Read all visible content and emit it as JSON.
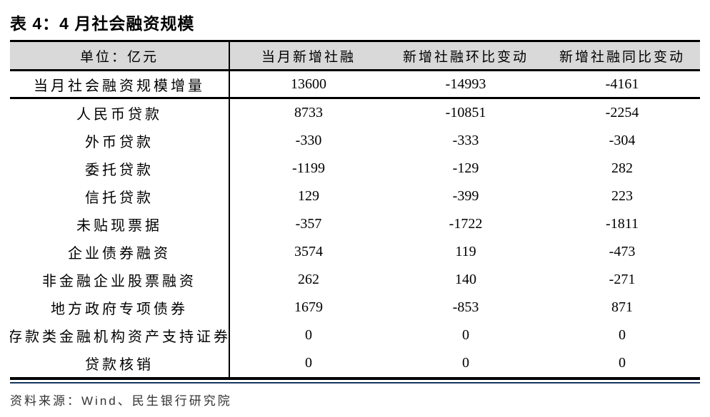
{
  "title": "表 4：4 月社会融资规模",
  "table": {
    "header": [
      "单位：亿元",
      "当月新增社融",
      "新增社融环比变动",
      "新增社融同比变动"
    ],
    "rows": [
      {
        "label": "当月社会融资规模增量",
        "values": [
          "13600",
          "-14993",
          "-4161"
        ],
        "emphasis": true
      },
      {
        "label": "人民币贷款",
        "values": [
          "8733",
          "-10851",
          "-2254"
        ],
        "emphasis": false
      },
      {
        "label": "外币贷款",
        "values": [
          "-330",
          "-333",
          "-304"
        ],
        "emphasis": false
      },
      {
        "label": "委托贷款",
        "values": [
          "-1199",
          "-129",
          "282"
        ],
        "emphasis": false
      },
      {
        "label": "信托贷款",
        "values": [
          "129",
          "-399",
          "223"
        ],
        "emphasis": false
      },
      {
        "label": "未贴现票据",
        "values": [
          "-357",
          "-1722",
          "-1811"
        ],
        "emphasis": false
      },
      {
        "label": "企业债券融资",
        "values": [
          "3574",
          "119",
          "-473"
        ],
        "emphasis": false
      },
      {
        "label": "非金融企业股票融资",
        "values": [
          "262",
          "140",
          "-271"
        ],
        "emphasis": false
      },
      {
        "label": "地方政府专项债券",
        "values": [
          "1679",
          "-853",
          "871"
        ],
        "emphasis": false
      },
      {
        "label": "存款类金融机构资产支持证券",
        "values": [
          "0",
          "0",
          "0"
        ],
        "emphasis": false
      },
      {
        "label": "贷款核销",
        "values": [
          "0",
          "0",
          "0"
        ],
        "emphasis": false
      }
    ]
  },
  "footer": {
    "source_label": "资料来源：Wind、民生银行研究院"
  },
  "colors": {
    "header_bg": "#d9d9d9",
    "border": "#000000",
    "bottom_accent": "#17365d",
    "footer_text": "#333333"
  }
}
